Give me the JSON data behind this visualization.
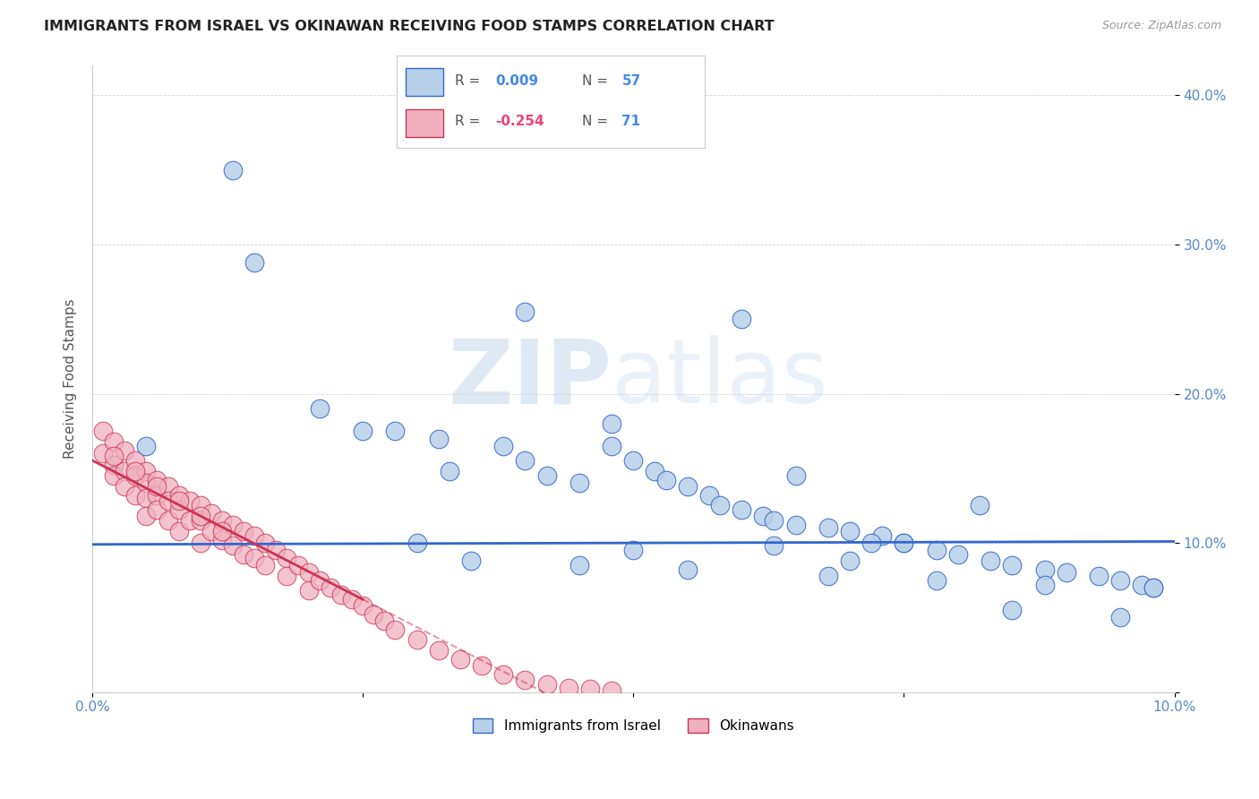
{
  "title": "IMMIGRANTS FROM ISRAEL VS OKINAWAN RECEIVING FOOD STAMPS CORRELATION CHART",
  "source": "Source: ZipAtlas.com",
  "ylabel": "Receiving Food Stamps",
  "xlim": [
    0.0,
    0.1
  ],
  "ylim": [
    0.0,
    0.42
  ],
  "color_israel": "#b8d0e8",
  "color_okinawan": "#f0b0c0",
  "color_israel_line": "#3366cc",
  "color_okinawan_line": "#cc3355",
  "color_tick": "#5588cc",
  "israel_x": [
    0.005,
    0.013,
    0.03,
    0.015,
    0.021,
    0.025,
    0.028,
    0.032,
    0.033,
    0.038,
    0.04,
    0.042,
    0.045,
    0.048,
    0.048,
    0.05,
    0.052,
    0.053,
    0.055,
    0.057,
    0.058,
    0.06,
    0.062,
    0.063,
    0.063,
    0.065,
    0.068,
    0.07,
    0.07,
    0.073,
    0.075,
    0.078,
    0.08,
    0.083,
    0.085,
    0.088,
    0.04,
    0.06,
    0.072,
    0.082,
    0.09,
    0.093,
    0.095,
    0.097,
    0.098,
    0.05,
    0.065,
    0.075,
    0.085,
    0.095,
    0.035,
    0.045,
    0.055,
    0.068,
    0.078,
    0.088,
    0.098
  ],
  "israel_y": [
    0.165,
    0.35,
    0.1,
    0.288,
    0.19,
    0.175,
    0.175,
    0.17,
    0.148,
    0.165,
    0.155,
    0.145,
    0.14,
    0.18,
    0.165,
    0.155,
    0.148,
    0.142,
    0.138,
    0.132,
    0.125,
    0.122,
    0.118,
    0.115,
    0.098,
    0.112,
    0.11,
    0.108,
    0.088,
    0.105,
    0.1,
    0.095,
    0.092,
    0.088,
    0.085,
    0.082,
    0.255,
    0.25,
    0.1,
    0.125,
    0.08,
    0.078,
    0.075,
    0.072,
    0.07,
    0.095,
    0.145,
    0.1,
    0.055,
    0.05,
    0.088,
    0.085,
    0.082,
    0.078,
    0.075,
    0.072,
    0.07
  ],
  "okinawan_x": [
    0.001,
    0.001,
    0.002,
    0.002,
    0.002,
    0.003,
    0.003,
    0.003,
    0.004,
    0.004,
    0.004,
    0.005,
    0.005,
    0.005,
    0.005,
    0.006,
    0.006,
    0.006,
    0.007,
    0.007,
    0.007,
    0.008,
    0.008,
    0.008,
    0.009,
    0.009,
    0.01,
    0.01,
    0.01,
    0.011,
    0.011,
    0.012,
    0.012,
    0.013,
    0.013,
    0.014,
    0.014,
    0.015,
    0.015,
    0.016,
    0.016,
    0.017,
    0.018,
    0.018,
    0.019,
    0.02,
    0.02,
    0.021,
    0.022,
    0.023,
    0.024,
    0.025,
    0.026,
    0.027,
    0.028,
    0.03,
    0.032,
    0.034,
    0.036,
    0.038,
    0.04,
    0.042,
    0.044,
    0.046,
    0.048,
    0.002,
    0.004,
    0.006,
    0.008,
    0.01,
    0.012
  ],
  "okinawan_y": [
    0.175,
    0.16,
    0.168,
    0.152,
    0.145,
    0.162,
    0.148,
    0.138,
    0.155,
    0.145,
    0.132,
    0.148,
    0.14,
    0.13,
    0.118,
    0.142,
    0.132,
    0.122,
    0.138,
    0.128,
    0.115,
    0.132,
    0.122,
    0.108,
    0.128,
    0.115,
    0.125,
    0.115,
    0.1,
    0.12,
    0.108,
    0.115,
    0.102,
    0.112,
    0.098,
    0.108,
    0.092,
    0.105,
    0.09,
    0.1,
    0.085,
    0.095,
    0.09,
    0.078,
    0.085,
    0.08,
    0.068,
    0.075,
    0.07,
    0.065,
    0.062,
    0.058,
    0.052,
    0.048,
    0.042,
    0.035,
    0.028,
    0.022,
    0.018,
    0.012,
    0.008,
    0.005,
    0.003,
    0.002,
    0.001,
    0.158,
    0.148,
    0.138,
    0.128,
    0.118,
    0.108
  ]
}
